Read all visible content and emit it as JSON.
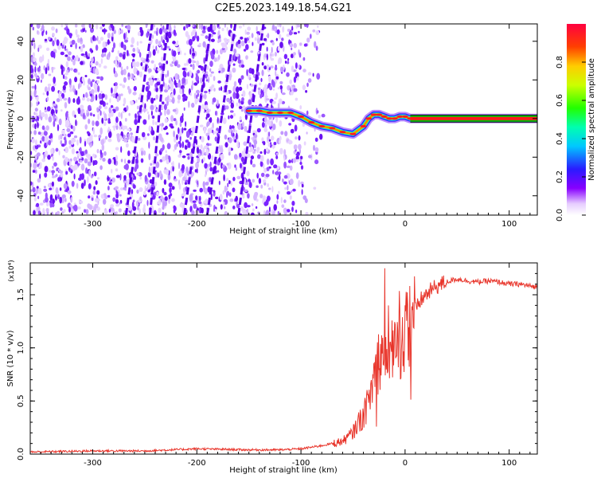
{
  "title": "C2E5.2023.149.18.54.G21",
  "chart_data": [
    {
      "type": "heatmap",
      "name": "spectrogram",
      "xlabel": "Height of straight line (km)",
      "ylabel": "Frequency (Hz)",
      "xlim": [
        -360,
        127
      ],
      "ylim": [
        -50,
        49
      ],
      "xticks": [
        -300,
        -200,
        -100,
        0,
        100
      ],
      "yticks": [
        -40,
        -20,
        0,
        20,
        40
      ],
      "colorbar": {
        "label": "Normalized spectral amplitude",
        "range": [
          0,
          1
        ],
        "ticks": [
          "0.0",
          "0.2",
          "0.4",
          "0.6",
          "0.8"
        ],
        "tick_values": [
          0,
          0.2,
          0.4,
          0.6,
          0.8
        ]
      },
      "signal_trace": {
        "description_series": "frequency vs height of the tracked signal",
        "x": [
          -150,
          -140,
          -130,
          -120,
          -110,
          -100,
          -90,
          -80,
          -70,
          -60,
          -50,
          -40,
          -35,
          -30,
          -25,
          -20,
          -15,
          -10,
          -5,
          0,
          5,
          10,
          50,
          100,
          127
        ],
        "y": [
          4,
          4,
          3,
          3,
          3,
          1,
          -2,
          -4,
          -5,
          -7,
          -8,
          -4,
          0,
          2,
          2,
          1,
          0,
          0,
          1,
          1,
          0,
          0,
          0,
          0,
          0
        ]
      },
      "drift_lines": {
        "description_series": "sloped streaks in the noise region (x at bottom, x at top)",
        "x_bottom": [
          -268,
          -245,
          -212,
          -190,
          -160
        ],
        "x_top": [
          -243,
          -228,
          -186,
          -163,
          -136
        ]
      },
      "noise_region_x_end": -80
    },
    {
      "type": "line",
      "name": "snr",
      "xlabel": "Height of straight line (km)",
      "ylabel": "SNR (10 * v/v)",
      "exponent_label": "(x10⁴)",
      "xlim": [
        -360,
        127
      ],
      "ylim": [
        0,
        1.8
      ],
      "xticks": [
        -300,
        -200,
        -100,
        0,
        100
      ],
      "yticks": [
        0.0,
        0.5,
        1.0,
        1.5
      ],
      "ytick_labels": [
        "0.0",
        "0.5",
        "1.0",
        "1.5"
      ],
      "color": "#e8352b",
      "x": [
        -360,
        -300,
        -250,
        -200,
        -150,
        -120,
        -100,
        -80,
        -70,
        -60,
        -50,
        -45,
        -40,
        -35,
        -30,
        -25,
        -20,
        -15,
        -10,
        -5,
        0,
        5,
        10,
        15,
        20,
        30,
        40,
        50,
        60,
        70,
        80,
        90,
        100,
        110,
        127
      ],
      "y": [
        0.02,
        0.03,
        0.03,
        0.05,
        0.04,
        0.04,
        0.05,
        0.08,
        0.1,
        0.12,
        0.2,
        0.3,
        0.35,
        0.5,
        0.7,
        0.9,
        1.0,
        1.05,
        1.0,
        1.05,
        1.15,
        1.25,
        1.35,
        1.45,
        1.5,
        1.58,
        1.62,
        1.65,
        1.63,
        1.62,
        1.63,
        1.62,
        1.6,
        1.6,
        1.57
      ]
    }
  ]
}
